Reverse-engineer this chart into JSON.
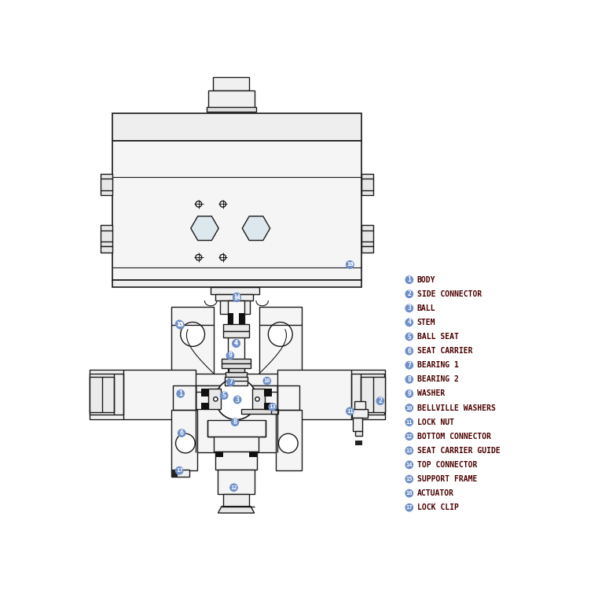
{
  "bg_color": "#ffffff",
  "line_color": "#1a1a1a",
  "label_circle_color": "#7090c8",
  "label_text_color": "#ffffff",
  "label_name_color": "#4a0000",
  "parts": [
    {
      "num": "1",
      "name": "BODY"
    },
    {
      "num": "2",
      "name": "SIDE CONNECTOR"
    },
    {
      "num": "3",
      "name": "BALL"
    },
    {
      "num": "4",
      "name": "STEM"
    },
    {
      "num": "5",
      "name": "BALL SEAT"
    },
    {
      "num": "6",
      "name": "SEAT CARRIER"
    },
    {
      "num": "7",
      "name": "BEARING 1"
    },
    {
      "num": "8",
      "name": "BEARING 2"
    },
    {
      "num": "9",
      "name": "WASHER"
    },
    {
      "num": "10",
      "name": "BELLVILLE WASHERS"
    },
    {
      "num": "11",
      "name": "LOCK NUT"
    },
    {
      "num": "12",
      "name": "BOTTOM CONNECTOR"
    },
    {
      "num": "13",
      "name": "SEAT CARRIER GUIDE"
    },
    {
      "num": "14",
      "name": "TOP CONNECTOR"
    },
    {
      "num": "15",
      "name": "SUPPORT FRAME"
    },
    {
      "num": "16",
      "name": "ACTUATOR"
    },
    {
      "num": "17",
      "name": "LOCK CLIP"
    }
  ]
}
